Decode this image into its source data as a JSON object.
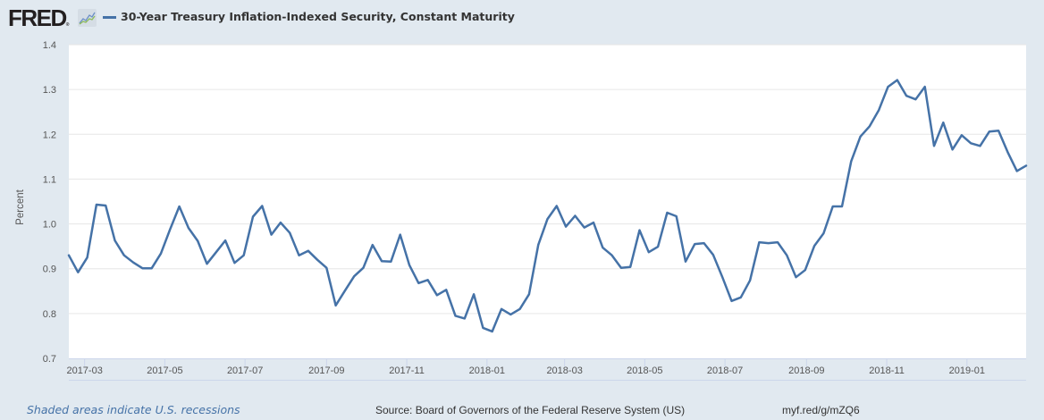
{
  "header": {
    "logo_text": "FRED",
    "logo_reg": "®",
    "legend_color": "#4572a7"
  },
  "footer": {
    "recession_note": "Shaded areas indicate U.S. recessions",
    "source": "Source: Board of Governors of the Federal Reserve System (US)",
    "short_link": "myf.red/g/mZQ6"
  },
  "chart_data": {
    "type": "line",
    "title": "30-Year Treasury Inflation-Indexed Security, Constant Maturity",
    "xlabel": "",
    "ylabel": "Percent",
    "ylim": [
      0.7,
      1.4
    ],
    "yticks": [
      0.7,
      0.8,
      0.9,
      1.0,
      1.1,
      1.2,
      1.3,
      1.4
    ],
    "ytick_labels": [
      "0.7",
      "0.8",
      "0.9",
      "1.0",
      "1.1",
      "1.2",
      "1.3",
      "1.4"
    ],
    "xlim": [
      "2017-02-17",
      "2019-02-15"
    ],
    "xticks": [
      "2017-03-01",
      "2017-05-01",
      "2017-07-01",
      "2017-09-01",
      "2017-11-01",
      "2018-01-01",
      "2018-03-01",
      "2018-05-01",
      "2018-07-01",
      "2018-09-01",
      "2018-11-01",
      "2019-01-01"
    ],
    "xtick_labels": [
      "2017-03",
      "2017-05",
      "2017-07",
      "2017-09",
      "2017-11",
      "2018-01",
      "2018-03",
      "2018-05",
      "2018-07",
      "2018-09",
      "2018-11",
      "2019-01"
    ],
    "grid": true,
    "legend_position": "top-left",
    "series": [
      {
        "name": "30-Year Treasury Inflation-Indexed Security, Constant Maturity",
        "color": "#4572a7",
        "frequency": "weekly",
        "start": "2017-02-17",
        "values": [
          0.93,
          0.892,
          0.925,
          1.043,
          1.041,
          0.963,
          0.93,
          0.914,
          0.901,
          0.901,
          0.934,
          0.988,
          1.039,
          0.991,
          0.962,
          0.911,
          0.937,
          0.963,
          0.913,
          0.93,
          1.016,
          1.04,
          0.976,
          1.003,
          0.98,
          0.93,
          0.94,
          0.92,
          0.902,
          0.818,
          0.851,
          0.883,
          0.902,
          0.953,
          0.917,
          0.916,
          0.976,
          0.908,
          0.868,
          0.875,
          0.841,
          0.853,
          0.795,
          0.789,
          0.843,
          0.768,
          0.76,
          0.81,
          0.798,
          0.81,
          0.843,
          0.953,
          1.011,
          1.04,
          0.994,
          1.018,
          0.992,
          1.003,
          0.947,
          0.93,
          0.902,
          0.904,
          0.986,
          0.937,
          0.949,
          1.025,
          1.017,
          0.916,
          0.955,
          0.957,
          0.931,
          0.881,
          0.828,
          0.836,
          0.874,
          0.959,
          0.957,
          0.959,
          0.93,
          0.881,
          0.897,
          0.951,
          0.979,
          1.039,
          1.039,
          1.14,
          1.195,
          1.218,
          1.254,
          1.306,
          1.321,
          1.286,
          1.278,
          1.306,
          1.174,
          1.226,
          1.166,
          1.198,
          1.18,
          1.174,
          1.206,
          1.208,
          1.16,
          1.118,
          1.13
        ]
      }
    ]
  }
}
